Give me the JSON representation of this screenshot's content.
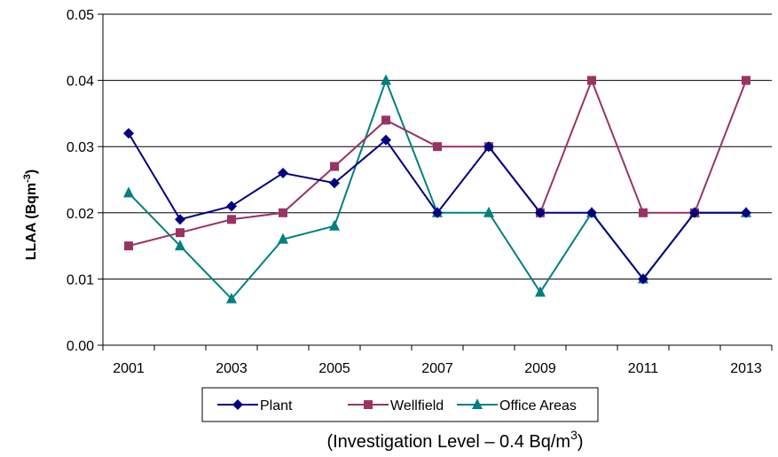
{
  "chart_data": {
    "type": "line",
    "x": [
      2001,
      2002,
      2003,
      2004,
      2005,
      2006,
      2007,
      2008,
      2009,
      2010,
      2011,
      2012,
      2013
    ],
    "x_tick_labels": [
      "2001",
      "2003",
      "2005",
      "2007",
      "2009",
      "2011",
      "2013"
    ],
    "y_tick_labels": [
      "0.00",
      "0.01",
      "0.02",
      "0.03",
      "0.04",
      "0.05"
    ],
    "ylim": [
      0,
      0.05
    ],
    "ylabel": "LLAA (Bqm",
    "ylabel_superscript": "-3",
    "ylabel_close": ")",
    "grid": "horizontal",
    "legend_position": "bottom",
    "footnote": "(Investigation Level – 0.4 Bq/m",
    "footnote_superscript": "3",
    "footnote_close": ")",
    "series": [
      {
        "name": "Plant",
        "color": "#000080",
        "marker": "diamond",
        "values": [
          0.032,
          0.019,
          0.021,
          0.026,
          0.0245,
          0.031,
          0.02,
          0.03,
          0.02,
          0.02,
          0.01,
          0.02,
          0.02
        ]
      },
      {
        "name": "Wellfield",
        "color": "#993366",
        "marker": "square",
        "values": [
          0.015,
          0.017,
          0.019,
          0.02,
          0.027,
          0.034,
          0.03,
          0.03,
          0.02,
          0.04,
          0.02,
          0.02,
          0.04
        ]
      },
      {
        "name": "Office Areas",
        "color": "#008080",
        "marker": "triangle",
        "values": [
          0.023,
          0.015,
          0.007,
          0.016,
          0.018,
          0.04,
          0.02,
          0.02,
          0.008,
          0.02,
          0.01,
          0.02,
          0.02
        ]
      }
    ]
  }
}
